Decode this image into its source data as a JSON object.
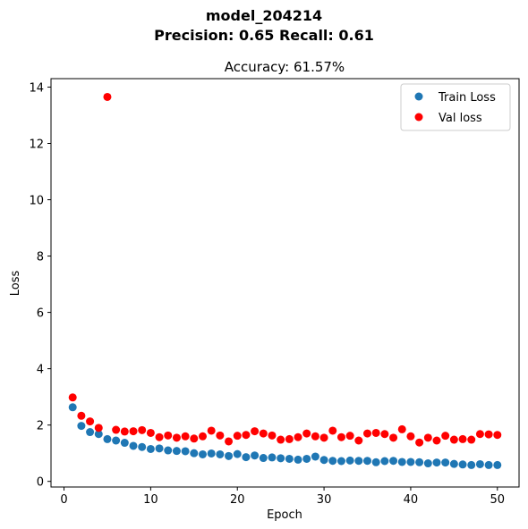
{
  "figure": {
    "suptitle_line1": "model_204214",
    "suptitle_line2": "Precision: 0.65 Recall: 0.61"
  },
  "chart_data": {
    "type": "scatter",
    "title": "Accuracy: 61.57%",
    "xlabel": "Epoch",
    "ylabel": "Loss",
    "xlim": [
      -1.5,
      52.5
    ],
    "ylim": [
      -0.2,
      14.3
    ],
    "xticks": [
      0,
      10,
      20,
      30,
      40,
      50
    ],
    "yticks": [
      0,
      2,
      4,
      6,
      8,
      10,
      12,
      14
    ],
    "legend_position": "top-right",
    "grid": false,
    "series": [
      {
        "name": "Train Loss",
        "color": "#1f77b4",
        "x": [
          1,
          2,
          3,
          4,
          5,
          6,
          7,
          8,
          9,
          10,
          11,
          12,
          13,
          14,
          15,
          16,
          17,
          18,
          19,
          20,
          21,
          22,
          23,
          24,
          25,
          26,
          27,
          28,
          29,
          30,
          31,
          32,
          33,
          34,
          35,
          36,
          37,
          38,
          39,
          40,
          41,
          42,
          43,
          44,
          45,
          46,
          47,
          48,
          49,
          50
        ],
        "y": [
          2.63,
          1.97,
          1.75,
          1.68,
          1.5,
          1.45,
          1.37,
          1.26,
          1.22,
          1.15,
          1.17,
          1.1,
          1.08,
          1.07,
          1.0,
          0.96,
          0.99,
          0.96,
          0.9,
          0.97,
          0.86,
          0.92,
          0.83,
          0.85,
          0.82,
          0.8,
          0.77,
          0.8,
          0.88,
          0.76,
          0.73,
          0.72,
          0.74,
          0.73,
          0.73,
          0.68,
          0.72,
          0.73,
          0.69,
          0.69,
          0.68,
          0.64,
          0.67,
          0.67,
          0.62,
          0.6,
          0.58,
          0.61,
          0.58,
          0.58
        ]
      },
      {
        "name": "Val loss",
        "color": "#ff0000",
        "x": [
          1,
          2,
          3,
          4,
          5,
          6,
          7,
          8,
          9,
          10,
          11,
          12,
          13,
          14,
          15,
          16,
          17,
          18,
          19,
          20,
          21,
          22,
          23,
          24,
          25,
          26,
          27,
          28,
          29,
          30,
          31,
          32,
          33,
          34,
          35,
          36,
          37,
          38,
          39,
          40,
          41,
          42,
          43,
          44,
          45,
          46,
          47,
          48,
          49,
          50
        ],
        "y": [
          2.98,
          2.33,
          2.13,
          1.9,
          13.65,
          1.83,
          1.77,
          1.78,
          1.82,
          1.72,
          1.57,
          1.63,
          1.55,
          1.6,
          1.52,
          1.6,
          1.8,
          1.63,
          1.42,
          1.62,
          1.65,
          1.78,
          1.7,
          1.63,
          1.48,
          1.5,
          1.57,
          1.7,
          1.6,
          1.55,
          1.8,
          1.57,
          1.62,
          1.45,
          1.7,
          1.72,
          1.68,
          1.55,
          1.85,
          1.6,
          1.38,
          1.55,
          1.45,
          1.62,
          1.48,
          1.5,
          1.48,
          1.68,
          1.67,
          1.65
        ]
      }
    ]
  }
}
